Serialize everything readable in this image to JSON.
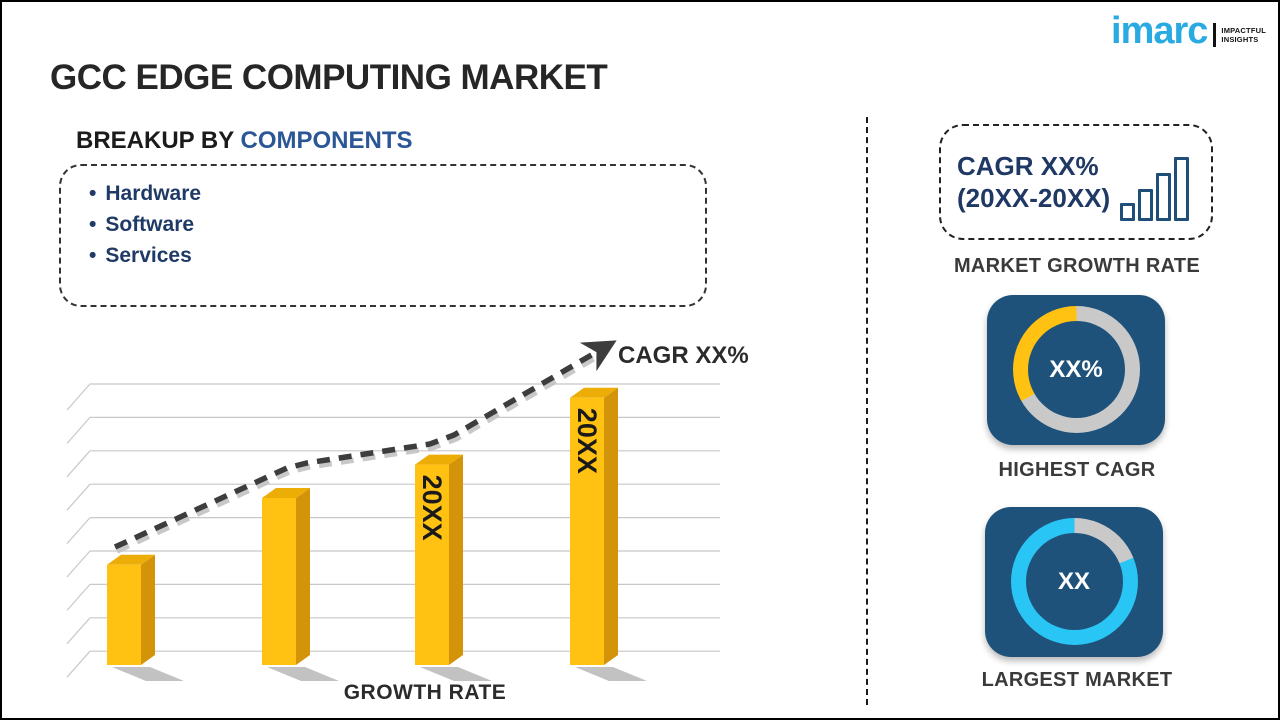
{
  "colors": {
    "brand_blue": "#29ABE2",
    "navy": "#1F3864",
    "heading_blue": "#2B5797",
    "panel_blue": "#1F527A",
    "bar_front": "#FFC112",
    "bar_side": "#D4940A",
    "bar_top": "#EDAD07",
    "grid_gray": "#C8C8C8",
    "trend_dark": "#3D3D3D",
    "donut_track": "#C9C9C9",
    "donut_cyan": "#29C5F5"
  },
  "brand": {
    "logo_text": "imarc",
    "tagline": [
      "IMPACTFUL",
      "INSIGHTS"
    ]
  },
  "page_title": "GCC EDGE COMPUTING MARKET",
  "breakup": {
    "heading_prefix": "BREAKUP BY ",
    "heading_highlight": "COMPONENTS",
    "items": [
      "Hardware",
      "Software",
      "Services"
    ]
  },
  "chart_data": [
    {
      "id": "growth_bar_chart",
      "type": "bar",
      "categories": [
        "",
        "",
        "20XX",
        "20XX"
      ],
      "values": [
        3,
        5,
        6,
        8
      ],
      "value_note": "placeholder chart; heights in gridline units, numeric values not shown",
      "title": "",
      "xlabel": "GROWTH RATE",
      "ylabel": "",
      "ylim": [
        0,
        9
      ],
      "grid": true,
      "gridline_count": 9,
      "bar_color": "#FFC112",
      "trend_annotation": "CAGR XX%",
      "trend_style": "dashed-ascending-arrow"
    },
    {
      "id": "highest_cagr_donut",
      "type": "pie",
      "labels": [
        "highlight",
        "remainder"
      ],
      "values": [
        33,
        67
      ],
      "center_label": "XX%",
      "caption": "HIGHEST CAGR",
      "segment_color": "#FFC112",
      "track_color": "#C9C9C9",
      "track_until_deg": 240
    },
    {
      "id": "largest_market_donut",
      "type": "pie",
      "labels": [
        "highlight",
        "remainder"
      ],
      "values": [
        81,
        19
      ],
      "center_label": "XX",
      "caption": "LARGEST MARKET",
      "segment_color": "#29C5F5",
      "track_color": "#C9C9C9",
      "track_until_deg": 68
    }
  ],
  "sidebar": {
    "growth_box": {
      "line1": "CAGR XX%",
      "line2": "(20XX-20XX)",
      "caption": "MARKET GROWTH RATE"
    }
  }
}
